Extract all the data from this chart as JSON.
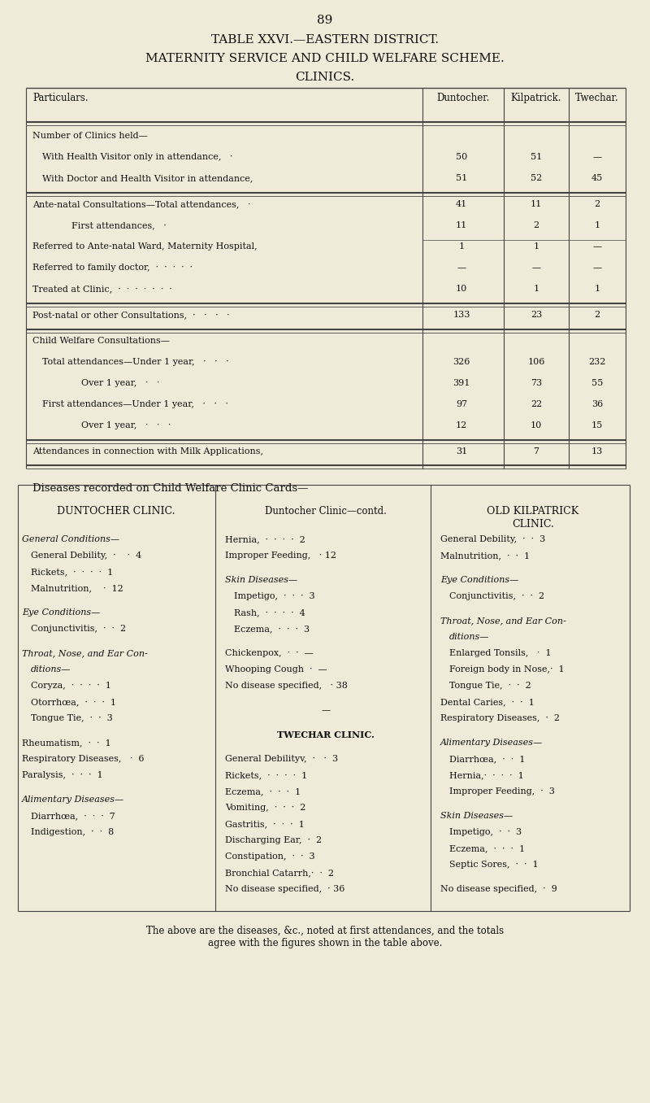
{
  "page_number": "89",
  "title1": "TABLE XXVI.—EASTERN DISTRICT.",
  "title2": "MATERNITY SERVICE AND CHILD WELFARE SCHEME.",
  "title3": "CLINICS.",
  "bg_color": "#f0ead8",
  "text_color": "#1a1a1a",
  "table_rows": [
    {
      "label": "Number of Clinics held—",
      "indent": 0,
      "d": "",
      "k": "",
      "t": "",
      "section_head": true
    },
    {
      "label": "With Health Visitor only in attendance,   ·",
      "indent": 1,
      "d": "50",
      "k": "51",
      "t": "—"
    },
    {
      "label": "With Doctor and Health Visitor in attendance,",
      "indent": 1,
      "d": "51",
      "k": "52",
      "t": "45"
    },
    {
      "label": "Ante-natal Consultations—Total attendances,   ·",
      "indent": 0,
      "d": "41",
      "k": "11",
      "t": "2"
    },
    {
      "label": "First attendances,   ·",
      "indent": 4,
      "d": "11",
      "k": "2",
      "t": "1"
    },
    {
      "label": "Referred to Ante-natal Ward, Maternity Hospital,",
      "indent": 0,
      "d": "1",
      "k": "1",
      "t": "—"
    },
    {
      "label": "Referred to family doctor,  ·  ·  ·  ·  ·",
      "indent": 0,
      "d": "—",
      "k": "—",
      "t": "—"
    },
    {
      "label": "Treated at Clinic,  ·  ·  ·  ·  ·  ·  ·",
      "indent": 0,
      "d": "10",
      "k": "1",
      "t": "1"
    },
    {
      "label": "Post-natal or other Consultations,  ·   ·   ·   ·",
      "indent": 0,
      "d": "133",
      "k": "23",
      "t": "2"
    },
    {
      "label": "Child Welfare Consultations—",
      "indent": 0,
      "d": "",
      "k": "",
      "t": "",
      "section_head": true
    },
    {
      "label": "Total attendances—Under 1 year,   ·   ·   ·",
      "indent": 1,
      "d": "326",
      "k": "106",
      "t": "232"
    },
    {
      "label": "Over 1 year,   ·   ·",
      "indent": 5,
      "d": "391",
      "k": "73",
      "t": "55"
    },
    {
      "label": "First attendances—Under 1 year,   ·   ·   ·",
      "indent": 1,
      "d": "97",
      "k": "22",
      "t": "36"
    },
    {
      "label": "Over 1 year,   ·   ·   ·",
      "indent": 5,
      "d": "12",
      "k": "10",
      "t": "15"
    },
    {
      "label": "Attendances in connection with Milk Applications,",
      "indent": 0,
      "d": "31",
      "k": "7",
      "t": "13"
    }
  ],
  "groups": [
    [
      0,
      1,
      2
    ],
    [
      3,
      4,
      5,
      6,
      7
    ],
    [
      8
    ],
    [
      9,
      10,
      11,
      12,
      13
    ],
    [
      14
    ]
  ],
  "diseases_header": "Diseases recorded on Child Welfare Clinic Cards—",
  "col1_header": "DUNTOCHER CLINIC.",
  "col2_header": "Duntocher Clinic—contd.",
  "col3_header": "OLD KILPATRICK\nCLINIC.",
  "col1_content": [
    {
      "text": "General Conditions—",
      "italic": true,
      "indent": 0
    },
    {
      "text": "General Debility,  ·    ·  4",
      "italic": false,
      "indent": 1
    },
    {
      "text": "Rickets,  ·  ·  ·  ·  1",
      "italic": false,
      "indent": 1
    },
    {
      "text": "Malnutrition,    ·  12",
      "italic": false,
      "indent": 1
    },
    {
      "text": "",
      "italic": false,
      "indent": 0
    },
    {
      "text": "Eye Conditions—",
      "italic": true,
      "indent": 0
    },
    {
      "text": "Conjunctivitis,  ·  ·  2",
      "italic": false,
      "indent": 1
    },
    {
      "text": "",
      "italic": false,
      "indent": 0
    },
    {
      "text": "Throat, Nose, and Ear Con-",
      "italic": true,
      "indent": 0
    },
    {
      "text": "ditions—",
      "italic": true,
      "indent": 1
    },
    {
      "text": "Coryza,  ·  ·  ·  ·  1",
      "italic": false,
      "indent": 1
    },
    {
      "text": "Otorrhœa,  ·  ·  ·  1",
      "italic": false,
      "indent": 1
    },
    {
      "text": "Tongue Tie,  ·  ·  3",
      "italic": false,
      "indent": 1
    },
    {
      "text": "",
      "italic": false,
      "indent": 0
    },
    {
      "text": "Rheumatism,  ·  ·  1",
      "italic": false,
      "indent": 0
    },
    {
      "text": "Respiratory Diseases,   ·  6",
      "italic": false,
      "indent": 0
    },
    {
      "text": "Paralysis,  ·  ·  ·  1",
      "italic": false,
      "indent": 0
    },
    {
      "text": "",
      "italic": false,
      "indent": 0
    },
    {
      "text": "Alimentary Diseases—",
      "italic": true,
      "indent": 0
    },
    {
      "text": "Diarrhœa,  ·  ·  ·  7",
      "italic": false,
      "indent": 1
    },
    {
      "text": "Indigestion,  ·  ·  8",
      "italic": false,
      "indent": 1
    }
  ],
  "col2_content": [
    {
      "text": "Hernia,  ·  ·  ·  ·  2",
      "italic": false,
      "indent": 0
    },
    {
      "text": "Improper Feeding,   · 12",
      "italic": false,
      "indent": 0
    },
    {
      "text": "",
      "italic": false,
      "indent": 0
    },
    {
      "text": "Skin Diseases—",
      "italic": true,
      "indent": 0
    },
    {
      "text": "Impetigo,  ·  ·  ·  3",
      "italic": false,
      "indent": 1
    },
    {
      "text": "Rash,  ·  ·  ·  ·  4",
      "italic": false,
      "indent": 1
    },
    {
      "text": "Eczema,  ·  ·  ·  3",
      "italic": false,
      "indent": 1
    },
    {
      "text": "",
      "italic": false,
      "indent": 0
    },
    {
      "text": "Chickenpox,  ·  ·  —",
      "italic": false,
      "indent": 0
    },
    {
      "text": "Whooping Cough  ·  —",
      "italic": false,
      "indent": 0
    },
    {
      "text": "No disease specified,   · 38",
      "italic": false,
      "indent": 0
    },
    {
      "text": "",
      "italic": false,
      "indent": 0
    },
    {
      "text": "—",
      "italic": false,
      "indent": 0,
      "center": true
    },
    {
      "text": "",
      "italic": false,
      "indent": 0
    },
    {
      "text": "TWECHAR CLINIC.",
      "italic": false,
      "indent": 0,
      "bold": true,
      "center": true
    },
    {
      "text": "",
      "italic": false,
      "indent": 0
    },
    {
      "text": "General Debilityv,  ·   ·  3",
      "italic": false,
      "indent": 0
    },
    {
      "text": "Rickets,  ·  ·  ·  ·  1",
      "italic": false,
      "indent": 0
    },
    {
      "text": "Eczema,  ·  ·  ·  1",
      "italic": false,
      "indent": 0
    },
    {
      "text": "Vomiting,  ·  ·  ·  2",
      "italic": false,
      "indent": 0
    },
    {
      "text": "Gastritis,  ·  ·  ·  1",
      "italic": false,
      "indent": 0
    },
    {
      "text": "Discharging Ear,  ·  2",
      "italic": false,
      "indent": 0
    },
    {
      "text": "Constipation,  ·  ·  3",
      "italic": false,
      "indent": 0
    },
    {
      "text": "Bronchial Catarrh,·  ·  2",
      "italic": false,
      "indent": 0
    },
    {
      "text": "No disease specified,  · 36",
      "italic": false,
      "indent": 0
    }
  ],
  "col3_content": [
    {
      "text": "General Debility,  ·  ·  3",
      "italic": false,
      "indent": 0
    },
    {
      "text": "Malnutrition,  ·  ·  1",
      "italic": false,
      "indent": 0
    },
    {
      "text": "",
      "italic": false,
      "indent": 0
    },
    {
      "text": "Eye Conditions—",
      "italic": true,
      "indent": 0
    },
    {
      "text": "Conjunctivitis,  ·  ·  2",
      "italic": false,
      "indent": 1
    },
    {
      "text": "",
      "italic": false,
      "indent": 0
    },
    {
      "text": "Throat, Nose, and Ear Con-",
      "italic": true,
      "indent": 0
    },
    {
      "text": "ditions—",
      "italic": true,
      "indent": 1
    },
    {
      "text": "Enlarged Tonsils,   ·  1",
      "italic": false,
      "indent": 1
    },
    {
      "text": "Foreign body in Nose,·  1",
      "italic": false,
      "indent": 1
    },
    {
      "text": "Tongue Tie,  ·  ·  2",
      "italic": false,
      "indent": 1
    },
    {
      "text": "Dental Caries,  ·  ·  1",
      "italic": false,
      "indent": 0
    },
    {
      "text": "Respiratory Diseases,  ·  2",
      "italic": false,
      "indent": 0
    },
    {
      "text": "",
      "italic": false,
      "indent": 0
    },
    {
      "text": "Alimentary Diseases—",
      "italic": true,
      "indent": 0
    },
    {
      "text": "Diarrhœa,  ·  ·  1",
      "italic": false,
      "indent": 1
    },
    {
      "text": "Hernia,·  ·  ·  ·  1",
      "italic": false,
      "indent": 1
    },
    {
      "text": "Improper Feeding,  ·  3",
      "italic": false,
      "indent": 1
    },
    {
      "text": "",
      "italic": false,
      "indent": 0
    },
    {
      "text": "Skin Diseases—",
      "italic": true,
      "indent": 0
    },
    {
      "text": "Impetigo,  ·  ·  3",
      "italic": false,
      "indent": 1
    },
    {
      "text": "Eczema,  ·  ·  ·  1",
      "italic": false,
      "indent": 1
    },
    {
      "text": "Septic Sores,  ·  ·  1",
      "italic": false,
      "indent": 1
    },
    {
      "text": "",
      "italic": false,
      "indent": 0
    },
    {
      "text": "No disease specified,  ·  9",
      "italic": false,
      "indent": 0
    }
  ],
  "footer": "The above are the diseases, &c., noted at first attendances, and the totals\nagree with the figures shown in the table above."
}
